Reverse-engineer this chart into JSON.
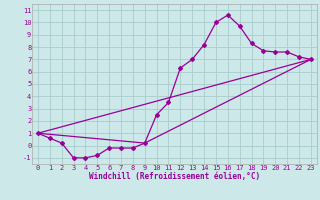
{
  "xlabel": "Windchill (Refroidissement éolien,°C)",
  "bg_color": "#cce8e8",
  "grid_color": "#aacccc",
  "line_color": "#990099",
  "spine_color": "#aaaaaa",
  "xlim": [
    -0.5,
    23.5
  ],
  "ylim": [
    -1.5,
    11.5
  ],
  "xticks": [
    0,
    1,
    2,
    3,
    4,
    5,
    6,
    7,
    8,
    9,
    10,
    11,
    12,
    13,
    14,
    15,
    16,
    17,
    18,
    19,
    20,
    21,
    22,
    23
  ],
  "yticks": [
    -1,
    0,
    1,
    2,
    3,
    4,
    5,
    6,
    7,
    8,
    9,
    10,
    11
  ],
  "series1_x": [
    0,
    1,
    2,
    3,
    4,
    5,
    6,
    7,
    8,
    9,
    10,
    11,
    12,
    13,
    14,
    15,
    16,
    17,
    18,
    19,
    20,
    21,
    22,
    23
  ],
  "series1_y": [
    1.0,
    0.6,
    0.2,
    -1.0,
    -1.0,
    -0.8,
    -0.2,
    -0.2,
    -0.2,
    0.2,
    2.5,
    3.5,
    6.3,
    7.0,
    8.2,
    10.0,
    10.6,
    9.7,
    8.3,
    7.7,
    7.6,
    7.6,
    7.2,
    7.0
  ],
  "series2_x": [
    0,
    23
  ],
  "series2_y": [
    1.0,
    7.0
  ],
  "series3_x": [
    0,
    9,
    23
  ],
  "series3_y": [
    1.0,
    0.2,
    7.0
  ],
  "xlabel_fontsize": 5.5,
  "tick_fontsize": 5.0,
  "marker_size": 2.0,
  "linewidth": 0.9
}
